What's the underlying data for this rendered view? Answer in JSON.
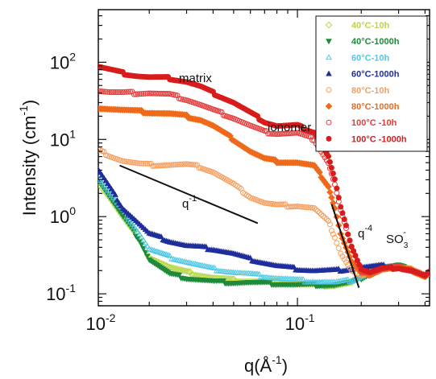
{
  "chart_data": {
    "type": "scatter",
    "x_scale": "log",
    "y_scale": "log",
    "xlim": [
      0.0115,
      0.42
    ],
    "ylim": [
      0.07,
      480
    ],
    "x_ticks": [
      {
        "value": 0.01,
        "base": "10",
        "exp": "-2"
      },
      {
        "value": 0.1,
        "base": "10",
        "exp": "-1"
      }
    ],
    "y_ticks": [
      {
        "value": 100,
        "base": "10",
        "exp": "2"
      },
      {
        "value": 10,
        "base": "10",
        "exp": "1"
      },
      {
        "value": 1,
        "base": "10",
        "exp": "0"
      },
      {
        "value": 0.1,
        "base": "10",
        "exp": "-1"
      }
    ],
    "xlabel": {
      "main": "q(Å",
      "sup": "-1",
      "tail": ")"
    },
    "ylabel": {
      "main": "Intensity (cm",
      "sup": "-1",
      "tail": ")"
    },
    "legend_position": "top-right",
    "annotations": {
      "matrix": "matrix",
      "ionomer": "ionomer",
      "so3_main": "SO",
      "so3_sub": "3",
      "so3_sup": "-",
      "q1_main": "q",
      "q1_sup": "-1",
      "q4_main": "q",
      "q4_sup": "-4"
    },
    "guide_lines": [
      {
        "name": "q-1",
        "x": [
          0.0145,
          0.065
        ],
        "y": [
          4.6,
          0.82
        ]
      },
      {
        "name": "q-4",
        "x": [
          0.145,
          0.195
        ],
        "y": [
          1.45,
          0.12
        ]
      }
    ],
    "series": [
      {
        "name": "40°C-10h",
        "color": "#b8d84a",
        "marker": "diamond-open",
        "x": [
          0.0115,
          0.013,
          0.015,
          0.018,
          0.02,
          0.025,
          0.03,
          0.04,
          0.05,
          0.06,
          0.08,
          0.1,
          0.12,
          0.15,
          0.18,
          0.2,
          0.25,
          0.3,
          0.35,
          0.4,
          0.42
        ],
        "y": [
          2.8,
          1.8,
          1.0,
          0.5,
          0.3,
          0.22,
          0.19,
          0.16,
          0.15,
          0.145,
          0.14,
          0.135,
          0.13,
          0.13,
          0.14,
          0.16,
          0.21,
          0.22,
          0.2,
          0.17,
          0.19
        ]
      },
      {
        "name": "40°C-1000h",
        "color": "#1e8a3a",
        "marker": "triangle-down-filled",
        "x": [
          0.0115,
          0.013,
          0.015,
          0.018,
          0.02,
          0.025,
          0.03,
          0.04,
          0.05,
          0.06,
          0.08,
          0.1,
          0.12,
          0.15,
          0.18,
          0.2,
          0.25,
          0.3,
          0.35,
          0.4,
          0.42
        ],
        "y": [
          3.0,
          1.8,
          1.0,
          0.5,
          0.28,
          0.18,
          0.16,
          0.145,
          0.14,
          0.14,
          0.135,
          0.13,
          0.13,
          0.13,
          0.14,
          0.16,
          0.22,
          0.23,
          0.2,
          0.17,
          0.19
        ]
      },
      {
        "name": "60°C-10h",
        "color": "#4ec8e4",
        "marker": "triangle-open",
        "x": [
          0.0115,
          0.013,
          0.015,
          0.018,
          0.02,
          0.025,
          0.03,
          0.04,
          0.05,
          0.06,
          0.08,
          0.1,
          0.12,
          0.15,
          0.18,
          0.2,
          0.25,
          0.3,
          0.35,
          0.4,
          0.42
        ],
        "y": [
          3.2,
          2.0,
          1.2,
          0.6,
          0.38,
          0.3,
          0.26,
          0.21,
          0.19,
          0.18,
          0.16,
          0.15,
          0.145,
          0.14,
          0.15,
          0.17,
          0.22,
          0.22,
          0.2,
          0.17,
          0.19
        ]
      },
      {
        "name": "60°C-1000h",
        "color": "#1f2e9a",
        "marker": "triangle-up-filled",
        "x": [
          0.0115,
          0.013,
          0.015,
          0.018,
          0.02,
          0.025,
          0.03,
          0.035,
          0.04,
          0.05,
          0.06,
          0.08,
          0.1,
          0.12,
          0.15,
          0.18,
          0.2,
          0.25,
          0.3,
          0.35,
          0.4,
          0.42
        ],
        "y": [
          4.0,
          2.4,
          1.3,
          0.8,
          0.6,
          0.48,
          0.42,
          0.4,
          0.38,
          0.33,
          0.28,
          0.23,
          0.21,
          0.2,
          0.2,
          0.21,
          0.22,
          0.23,
          0.22,
          0.2,
          0.17,
          0.19
        ]
      },
      {
        "name": "80°C-10h",
        "color": "#f6a060",
        "marker": "circle-open",
        "x": [
          0.0115,
          0.013,
          0.015,
          0.018,
          0.02,
          0.025,
          0.03,
          0.035,
          0.04,
          0.05,
          0.06,
          0.07,
          0.08,
          0.1,
          0.12,
          0.14,
          0.15,
          0.16,
          0.18,
          0.2,
          0.22,
          0.25,
          0.3,
          0.35,
          0.4,
          0.42
        ],
        "y": [
          7.2,
          6.2,
          5.3,
          4.8,
          4.7,
          4.7,
          4.7,
          4.4,
          3.8,
          2.6,
          1.8,
          1.5,
          1.4,
          1.38,
          1.28,
          0.85,
          0.55,
          0.34,
          0.2,
          0.17,
          0.18,
          0.21,
          0.22,
          0.2,
          0.17,
          0.19
        ]
      },
      {
        "name": "80°C-1000h",
        "color": "#ee6a1a",
        "marker": "diamond-filled",
        "x": [
          0.0115,
          0.013,
          0.015,
          0.018,
          0.02,
          0.025,
          0.03,
          0.035,
          0.04,
          0.05,
          0.06,
          0.07,
          0.08,
          0.1,
          0.12,
          0.14,
          0.15,
          0.16,
          0.18,
          0.2,
          0.22,
          0.25,
          0.3,
          0.35,
          0.4,
          0.42
        ],
        "y": [
          26,
          25,
          24,
          23,
          22.5,
          21.5,
          20,
          18,
          15,
          10,
          7,
          5.6,
          5.2,
          5.0,
          4.5,
          2.5,
          1.3,
          0.6,
          0.26,
          0.18,
          0.18,
          0.21,
          0.22,
          0.2,
          0.17,
          0.19
        ]
      },
      {
        "name": "100°C -10h",
        "color": "#e63a3a",
        "marker": "circle-open",
        "x": [
          0.0115,
          0.013,
          0.015,
          0.018,
          0.02,
          0.025,
          0.03,
          0.035,
          0.04,
          0.05,
          0.06,
          0.07,
          0.08,
          0.1,
          0.12,
          0.14,
          0.15,
          0.16,
          0.18,
          0.2,
          0.22,
          0.25,
          0.3,
          0.35,
          0.4,
          0.42
        ],
        "y": [
          43,
          41,
          40,
          40,
          40,
          38,
          33,
          28,
          24,
          19,
          15,
          12.5,
          12,
          12,
          10,
          5,
          2.6,
          1.2,
          0.4,
          0.2,
          0.19,
          0.21,
          0.22,
          0.2,
          0.17,
          0.19
        ]
      },
      {
        "name": "100°C -1000h",
        "color": "#d81c1c",
        "marker": "circle-filled",
        "x": [
          0.0115,
          0.013,
          0.015,
          0.018,
          0.02,
          0.025,
          0.03,
          0.035,
          0.04,
          0.05,
          0.06,
          0.07,
          0.08,
          0.1,
          0.12,
          0.14,
          0.15,
          0.16,
          0.18,
          0.2,
          0.22,
          0.25,
          0.3,
          0.35,
          0.4,
          0.42
        ],
        "y": [
          88,
          80,
          72,
          66,
          64,
          62,
          56,
          48,
          40,
          30,
          22,
          17,
          15,
          15,
          12.5,
          6,
          3,
          1.3,
          0.42,
          0.21,
          0.19,
          0.21,
          0.22,
          0.2,
          0.17,
          0.19
        ]
      }
    ]
  }
}
